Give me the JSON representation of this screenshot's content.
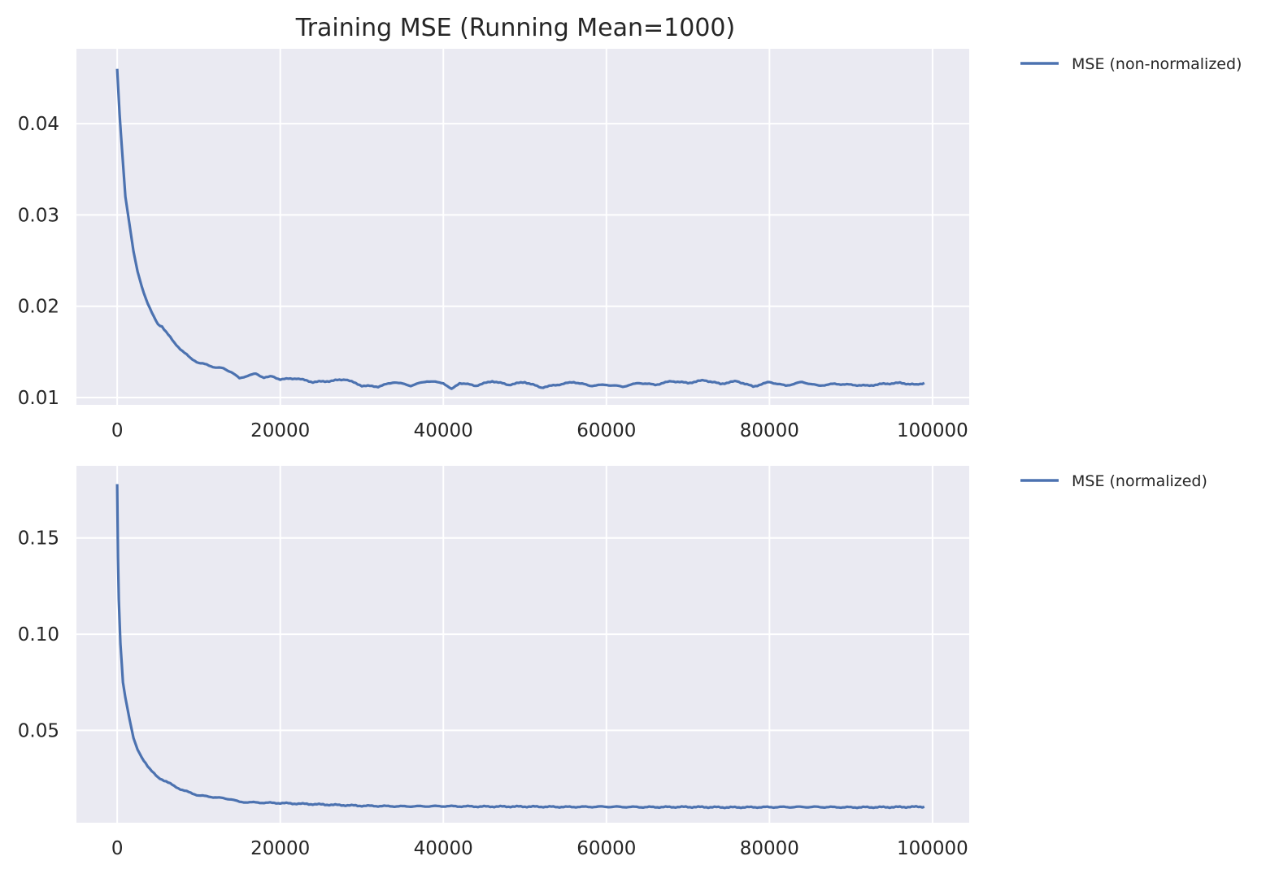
{
  "chart_data": [
    {
      "type": "line",
      "title": "Training MSE (Running Mean=1000)",
      "xlabel": "",
      "ylabel": "",
      "xlim": [
        -5000,
        104500
      ],
      "ylim": [
        0.0092,
        0.0482
      ],
      "xticks": [
        0,
        20000,
        40000,
        60000,
        80000,
        100000
      ],
      "xtick_labels": [
        "0",
        "20000",
        "40000",
        "60000",
        "80000",
        "100000"
      ],
      "yticks": [
        0.01,
        0.02,
        0.03,
        0.04
      ],
      "ytick_labels": [
        "0.01",
        "0.02",
        "0.03",
        "0.04"
      ],
      "grid": true,
      "legend_position": "outside-top-right",
      "series": [
        {
          "name": "MSE (non-normalized)",
          "color": "#4c72b0",
          "x": [
            0,
            300,
            600,
            1000,
            1500,
            2000,
            2500,
            3000,
            3500,
            4000,
            4500,
            5000,
            5500,
            6000,
            7000,
            8000,
            9000,
            10000,
            11000,
            12000,
            13000,
            14000,
            15000,
            16000,
            17000,
            18000,
            19000,
            20000,
            22000,
            24000,
            26000,
            28000,
            30000,
            32000,
            34000,
            36000,
            38000,
            40000,
            41000,
            42000,
            44000,
            46000,
            48000,
            50000,
            52000,
            54000,
            56000,
            58000,
            60000,
            62000,
            64000,
            66000,
            68000,
            70000,
            72000,
            74000,
            76000,
            78000,
            80000,
            82000,
            84000,
            86000,
            88000,
            90000,
            92000,
            94000,
            96000,
            98000,
            99000
          ],
          "y": [
            0.046,
            0.041,
            0.037,
            0.032,
            0.029,
            0.026,
            0.0238,
            0.0222,
            0.0209,
            0.0198,
            0.0188,
            0.018,
            0.0178,
            0.0172,
            0.016,
            0.0151,
            0.0143,
            0.0138,
            0.0136,
            0.0133,
            0.0132,
            0.0128,
            0.0121,
            0.0124,
            0.0126,
            0.0122,
            0.0123,
            0.012,
            0.0121,
            0.0117,
            0.0118,
            0.012,
            0.0113,
            0.0112,
            0.0117,
            0.0113,
            0.0118,
            0.0116,
            0.0109,
            0.0116,
            0.0113,
            0.0118,
            0.0114,
            0.0117,
            0.0111,
            0.0114,
            0.0117,
            0.0113,
            0.0114,
            0.0112,
            0.0116,
            0.0114,
            0.0118,
            0.0116,
            0.0119,
            0.0115,
            0.0118,
            0.0112,
            0.0117,
            0.0113,
            0.0117,
            0.0113,
            0.0115,
            0.0114,
            0.0113,
            0.0115,
            0.0116,
            0.0114,
            0.0116
          ]
        }
      ]
    },
    {
      "type": "line",
      "title": "",
      "xlabel": "",
      "ylabel": "",
      "xlim": [
        -5000,
        104500
      ],
      "ylim": [
        0.002,
        0.1875
      ],
      "xticks": [
        0,
        20000,
        40000,
        60000,
        80000,
        100000
      ],
      "xtick_labels": [
        "0",
        "20000",
        "40000",
        "60000",
        "80000",
        "100000"
      ],
      "yticks": [
        0.05,
        0.1,
        0.15
      ],
      "ytick_labels": [
        "0.05",
        "0.10",
        "0.15"
      ],
      "grid": true,
      "legend_position": "outside-top-right",
      "series": [
        {
          "name": "MSE (normalized)",
          "color": "#4c72b0",
          "x": [
            0,
            100,
            200,
            400,
            700,
            1000,
            1500,
            2000,
            2500,
            3000,
            3500,
            4000,
            4500,
            5000,
            6000,
            7000,
            8000,
            9000,
            10000,
            12000,
            14000,
            15000,
            17000,
            20000,
            25000,
            30000,
            35000,
            40000,
            45000,
            50000,
            55000,
            60000,
            65000,
            70000,
            75000,
            80000,
            85000,
            90000,
            95000,
            99000
          ],
          "y": [
            0.178,
            0.14,
            0.118,
            0.095,
            0.075,
            0.067,
            0.056,
            0.046,
            0.04,
            0.036,
            0.033,
            0.03,
            0.0275,
            0.0255,
            0.0235,
            0.021,
            0.019,
            0.0175,
            0.0162,
            0.0152,
            0.0142,
            0.0128,
            0.0125,
            0.0122,
            0.0115,
            0.0108,
            0.0105,
            0.0106,
            0.0104,
            0.0104,
            0.0102,
            0.0103,
            0.0101,
            0.0102,
            0.01,
            0.0101,
            0.0102,
            0.01,
            0.0101,
            0.0103
          ]
        }
      ]
    }
  ]
}
